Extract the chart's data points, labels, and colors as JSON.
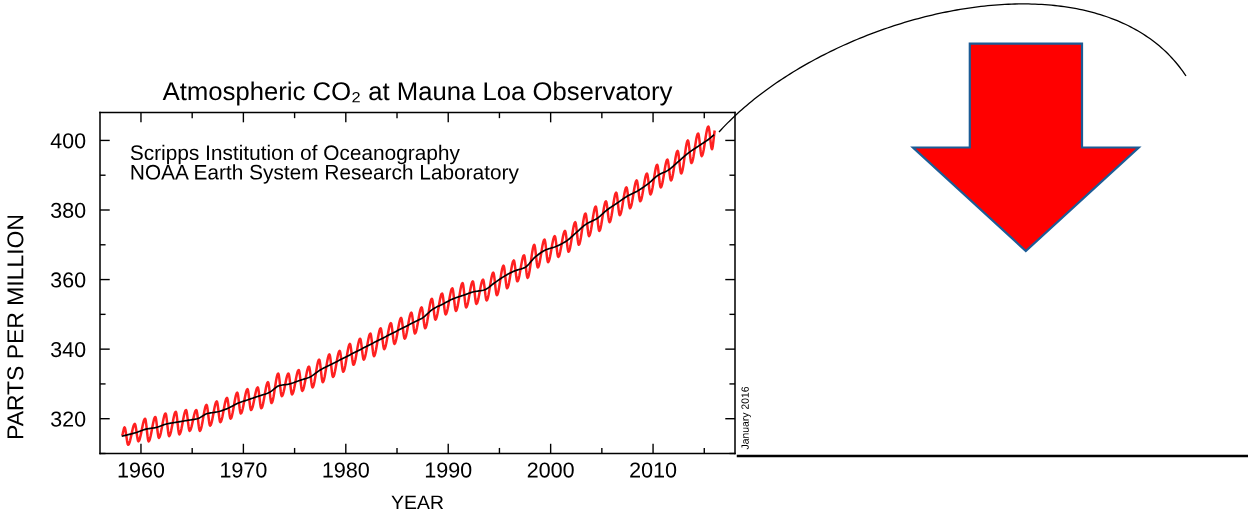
{
  "chart_data": {
    "type": "line",
    "title": "Atmospheric CO₂ at Mauna Loa Observatory",
    "xlabel": "YEAR",
    "ylabel": "PARTS PER MILLION",
    "annotations": [
      "Scripps Institution of Oceanography",
      "NOAA Earth System Research Laboratory",
      "January 2016"
    ],
    "xlim": [
      1956,
      2018
    ],
    "xticks": [
      1960,
      {
        "value": 1965,
        "label": null
      },
      1970,
      {
        "value": 1975,
        "label": null
      },
      1980,
      {
        "value": 1985,
        "label": null
      },
      1990,
      {
        "value": 1995,
        "label": null
      },
      2000,
      {
        "value": 2005,
        "label": null
      },
      2010,
      {
        "value": 2015,
        "label": null
      }
    ],
    "ylim": [
      310,
      408
    ],
    "yticks": [
      {
        "value": 310,
        "label": null
      },
      320,
      {
        "value": 330,
        "label": null
      },
      340,
      {
        "value": 350,
        "label": null
      },
      360,
      {
        "value": 370,
        "label": null
      },
      380,
      {
        "value": 390,
        "label": null
      },
      400
    ],
    "grid": false,
    "legend": false,
    "marker": "none",
    "line_style": "solid",
    "series": [
      {
        "color": "#ff2020",
        "x": [
          1958.2,
          1958.4,
          1958.75,
          1959.4,
          1959.75,
          1960.4,
          1960.75,
          1961.4,
          1961.75,
          1962.4,
          1962.75,
          1963.4,
          1963.75,
          1964.4,
          1964.75,
          1965.4,
          1965.75,
          1966.4,
          1966.75,
          1967.4,
          1967.75,
          1968.4,
          1968.75,
          1969.4,
          1969.75,
          1970.4,
          1970.75,
          1971.4,
          1971.75,
          1972.4,
          1972.75,
          1973.4,
          1973.75,
          1974.4,
          1974.75,
          1975.4,
          1975.75,
          1976.4,
          1976.75,
          1977.4,
          1977.75,
          1978.4,
          1978.75,
          1979.4,
          1979.75,
          1980.4,
          1980.75,
          1981.4,
          1981.75,
          1982.4,
          1982.75,
          1983.4,
          1983.75,
          1984.4,
          1984.75,
          1985.4,
          1985.75,
          1986.4,
          1986.75,
          1987.4,
          1987.75,
          1988.4,
          1988.75,
          1989.4,
          1989.75,
          1990.4,
          1990.75,
          1991.4,
          1991.75,
          1992.4,
          1992.75,
          1993.4,
          1993.75,
          1994.4,
          1994.75,
          1995.4,
          1995.75,
          1996.4,
          1996.75,
          1997.4,
          1997.75,
          1998.4,
          1998.75,
          1999.4,
          1999.75,
          2000.4,
          2000.75,
          2001.4,
          2001.75,
          2002.4,
          2002.75,
          2003.4,
          2003.75,
          2004.4,
          2004.75,
          2005.4,
          2005.75,
          2006.4,
          2006.75,
          2007.4,
          2007.75,
          2008.4,
          2008.75,
          2009.4,
          2009.75,
          2010.4,
          2010.75,
          2011.4,
          2011.75,
          2012.4,
          2012.75,
          2013.4,
          2013.75,
          2014.4,
          2014.75,
          2015.4,
          2015.75,
          2016.0
        ],
        "values": [
          315.5,
          317.5,
          312.5,
          318.5,
          313.5,
          320.0,
          313.5,
          320.5,
          314.5,
          321.5,
          315.0,
          322.0,
          315.5,
          322.5,
          316.5,
          322.5,
          316.5,
          324.0,
          318.0,
          325.0,
          319.0,
          326.0,
          320.0,
          327.5,
          321.5,
          328.5,
          322.5,
          329.0,
          323.0,
          330.5,
          324.5,
          333.0,
          326.5,
          333.0,
          327.0,
          334.0,
          328.0,
          335.0,
          329.0,
          337.0,
          330.5,
          338.5,
          332.0,
          339.5,
          333.5,
          341.5,
          335.5,
          343.0,
          337.0,
          344.5,
          338.0,
          346.0,
          340.0,
          347.5,
          341.5,
          349.0,
          343.0,
          350.5,
          344.5,
          352.0,
          346.0,
          354.5,
          348.5,
          356.0,
          350.0,
          357.5,
          351.0,
          359.0,
          352.0,
          359.5,
          353.0,
          360.0,
          354.0,
          362.0,
          355.5,
          364.0,
          357.5,
          365.5,
          359.5,
          367.0,
          360.5,
          370.0,
          363.5,
          371.5,
          365.0,
          372.5,
          366.5,
          374.0,
          368.0,
          376.5,
          370.0,
          379.0,
          372.5,
          381.0,
          374.0,
          382.5,
          376.5,
          385.0,
          378.5,
          386.5,
          380.5,
          388.5,
          382.5,
          390.5,
          384.5,
          393.0,
          386.5,
          394.5,
          388.5,
          397.0,
          390.5,
          400.0,
          393.5,
          402.0,
          395.5,
          404.0,
          397.5,
          402.5
        ]
      },
      {
        "color": "#000000",
        "x": [
          1958.2,
          1959.5,
          1960.5,
          1961.5,
          1962.5,
          1963.5,
          1964.5,
          1965.5,
          1966.5,
          1967.5,
          1968.5,
          1969.5,
          1970.5,
          1971.5,
          1972.5,
          1973.5,
          1974.5,
          1975.5,
          1976.5,
          1977.5,
          1978.5,
          1979.5,
          1980.5,
          1981.5,
          1982.5,
          1983.5,
          1984.5,
          1985.5,
          1986.5,
          1987.5,
          1988.5,
          1989.5,
          1990.5,
          1991.5,
          1992.5,
          1993.5,
          1994.5,
          1995.5,
          1996.5,
          1997.5,
          1998.5,
          1999.5,
          2000.5,
          2001.5,
          2002.5,
          2003.5,
          2004.5,
          2005.5,
          2006.5,
          2007.5,
          2008.5,
          2009.5,
          2010.5,
          2011.5,
          2012.5,
          2013.5,
          2014.5,
          2015.5,
          2015.9
        ],
        "values": [
          315.0,
          316.0,
          317.0,
          317.5,
          318.5,
          319.0,
          319.5,
          320.0,
          321.5,
          322.0,
          323.0,
          324.5,
          325.5,
          326.5,
          327.5,
          329.5,
          330.0,
          331.0,
          332.0,
          334.0,
          335.5,
          337.0,
          338.5,
          340.0,
          341.5,
          343.0,
          344.5,
          346.0,
          347.5,
          349.0,
          351.5,
          353.0,
          354.5,
          355.5,
          356.5,
          357.0,
          359.0,
          361.0,
          362.5,
          363.5,
          366.5,
          368.5,
          369.5,
          371.0,
          373.5,
          376.0,
          377.5,
          380.0,
          382.0,
          384.0,
          385.5,
          387.5,
          390.0,
          391.5,
          394.0,
          396.5,
          398.5,
          400.5,
          401.5
        ]
      }
    ]
  }
}
